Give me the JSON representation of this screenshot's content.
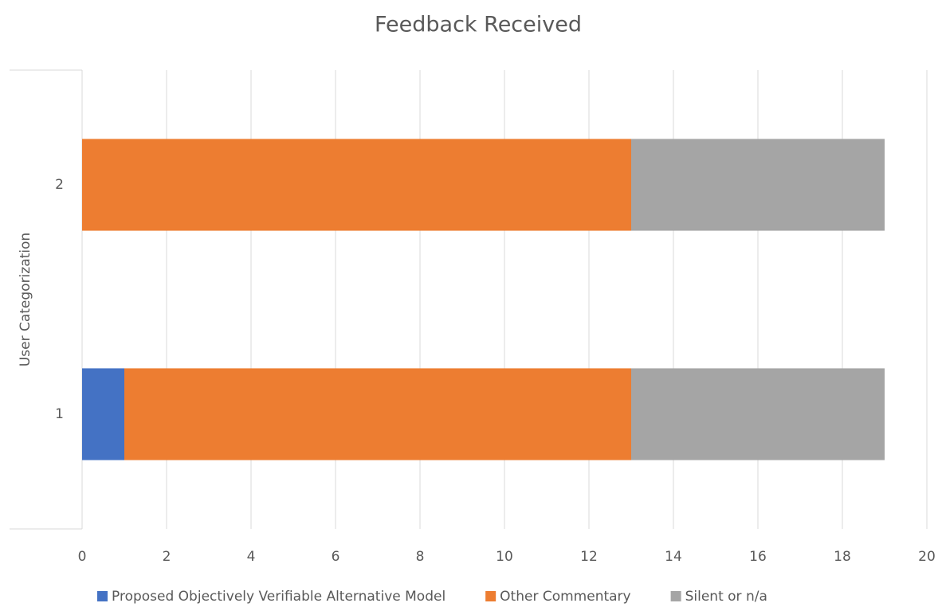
{
  "chart_data": {
    "type": "bar",
    "orientation": "horizontal",
    "stacked": true,
    "title": "Feedback Received",
    "y_label": "User Categorization",
    "categories": [
      "1",
      "2"
    ],
    "series": [
      {
        "name": "Proposed Objectively Verifiable Alternative Model",
        "color": "#4472c4",
        "values": [
          1,
          0
        ]
      },
      {
        "name": "Other Commentary",
        "color": "#ed7d31",
        "values": [
          12,
          13
        ]
      },
      {
        "name": "Silent or n/a",
        "color": "#a5a5a5",
        "values": [
          6,
          6
        ]
      }
    ],
    "xlim": [
      0,
      20
    ],
    "xticks": [
      0,
      2,
      4,
      6,
      8,
      10,
      12,
      14,
      16,
      18,
      20
    ],
    "grid": true,
    "legend": "bottom"
  }
}
